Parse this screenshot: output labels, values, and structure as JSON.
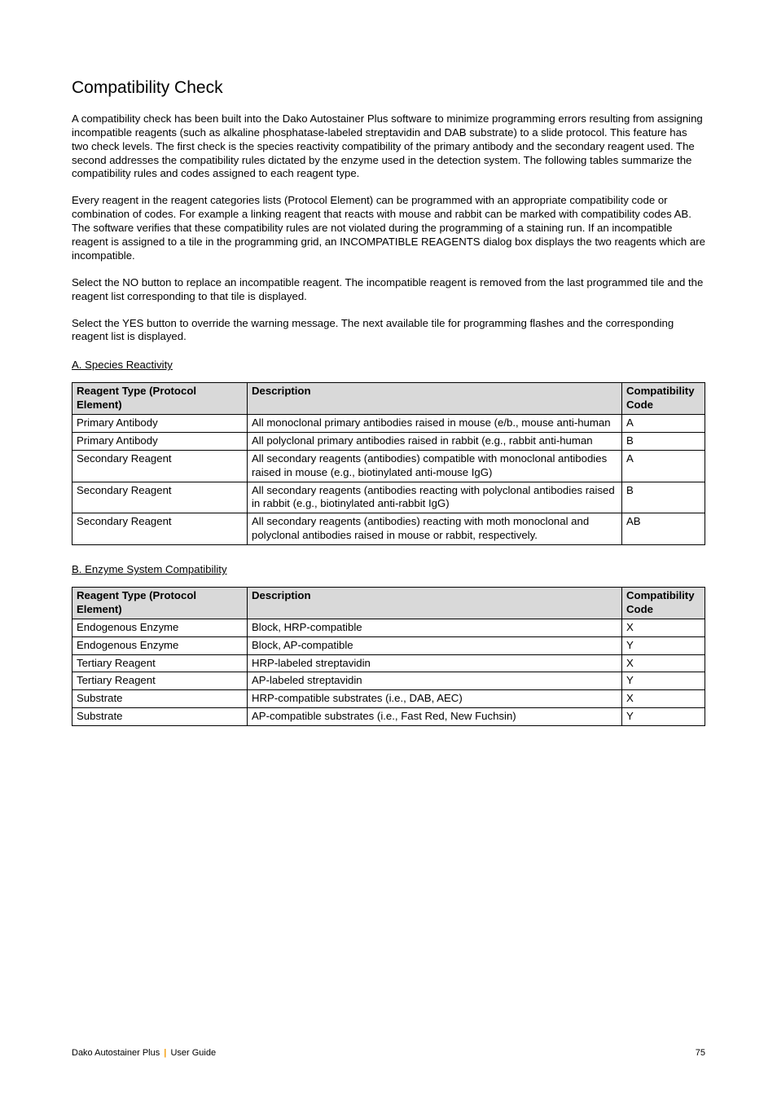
{
  "title": "Compatibility Check",
  "paragraphs": {
    "p1": "A compatibility check has been built into the Dako Autostainer Plus software to minimize programming errors resulting from assigning incompatible reagents (such as alkaline phosphatase-labeled streptavidin and DAB substrate) to a slide protocol. This feature has two check levels. The first check is the species reactivity compatibility of the primary antibody and the secondary reagent used. The second addresses the compatibility rules dictated by the enzyme used in the detection system. The following tables summarize the compatibility rules and codes assigned to each reagent type.",
    "p2": "Every reagent in the reagent categories lists (Protocol Element) can be programmed with an appropriate compatibility code or combination of codes. For example a linking reagent that reacts with mouse and rabbit can be marked with compatibility codes AB. The software verifies that these compatibility rules are not violated during the programming of a staining run. If an incompatible reagent is assigned to a tile in the programming grid, an INCOMPATIBLE REAGENTS dialog box displays the two reagents which are incompatible.",
    "p3": "Select the NO button to replace an incompatible reagent. The incompatible reagent is removed from the last programmed tile and the reagent list corresponding to that tile is displayed.",
    "p4": "Select the YES button to override the warning message. The next available tile for programming flashes and the corresponding reagent list is displayed."
  },
  "sectionA": {
    "heading": "A. Species Reactivity",
    "headers": {
      "c1": "Reagent Type (Protocol Element)",
      "c2": "Description",
      "c3": "Compatibility Code"
    },
    "rows": [
      {
        "c1": "Primary Antibody",
        "c2": "All monoclonal primary antibodies raised in mouse (e/b., mouse anti-human",
        "c3": "A"
      },
      {
        "c1": "Primary Antibody",
        "c2": "All polyclonal primary antibodies raised in rabbit (e.g., rabbit anti-human",
        "c3": "B"
      },
      {
        "c1": "Secondary Reagent",
        "c2": "All secondary reagents (antibodies) compatible with monoclonal antibodies raised in mouse (e.g., biotinylated anti-mouse IgG)",
        "c3": "A"
      },
      {
        "c1": "Secondary Reagent",
        "c2": "All secondary reagents (antibodies reacting with polyclonal antibodies raised in rabbit (e.g., biotinylated anti-rabbit IgG)",
        "c3": "B"
      },
      {
        "c1": "Secondary Reagent",
        "c2": "All secondary reagents (antibodies) reacting with moth monoclonal and polyclonal antibodies raised in mouse or rabbit, respectively.",
        "c3": "AB"
      }
    ]
  },
  "sectionB": {
    "heading": "B. Enzyme System Compatibility",
    "headers": {
      "c1": "Reagent Type (Protocol Element)",
      "c2": "Description",
      "c3": "Compatibility Code"
    },
    "rows": [
      {
        "c1": "Endogenous Enzyme",
        "c2": "Block, HRP-compatible",
        "c3": "X"
      },
      {
        "c1": "Endogenous Enzyme",
        "c2": "Block, AP-compatible",
        "c3": "Y"
      },
      {
        "c1": "Tertiary Reagent",
        "c2": "HRP-labeled streptavidin",
        "c3": "X"
      },
      {
        "c1": "Tertiary Reagent",
        "c2": "AP-labeled streptavidin",
        "c3": "Y"
      },
      {
        "c1": "Substrate",
        "c2": "HRP-compatible substrates (i.e., DAB, AEC)",
        "c3": "X"
      },
      {
        "c1": "Substrate",
        "c2": "AP-compatible substrates (i.e., Fast Red, New Fuchsin)",
        "c3": "Y"
      }
    ]
  },
  "footer": {
    "left1": "Dako Autostainer Plus",
    "left2": "User Guide",
    "pageNum": "75"
  }
}
